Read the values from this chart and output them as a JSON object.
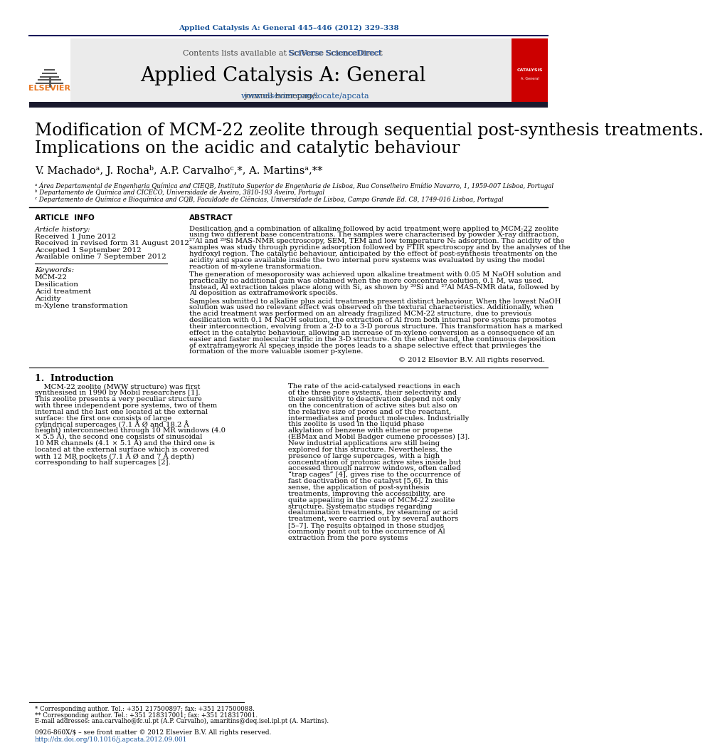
{
  "journal_ref": "Applied Catalysis A: General 445–446 (2012) 329–338",
  "contents_line": "Contents lists available at SciVerse ScienceDirect",
  "journal_name": "Applied Catalysis A: General",
  "journal_homepage_prefix": "journal homepage: ",
  "journal_homepage_link": "www.elsevier.com/locate/apcata",
  "title_line1": "Modification of MCM-22 zeolite through sequential post-synthesis treatments.",
  "title_line2": "Implications on the acidic and catalytic behaviour",
  "authors": "V. Machadoᵃ, J. Rochaᵇ, A.P. Carvalhoᶜ,*, A. Martinsᵃ,**",
  "affil_a": "ᵃ Área Departamental de Engenharia Química and CIEQB, Instituto Superior de Engenharia de Lisboa, Rua Conselheiro Emídio Navarro, 1, 1959-007 Lisboa, Portugal",
  "affil_b": "ᵇ Departamento de Química and CICECO, Universidade de Aveiro, 3810-193 Aveiro, Portugal",
  "affil_c": "ᶜ Departamento de Química e Bioquímica and CQB, Faculdade de Ciências, Universidade de Lisboa, Campo Grande Ed. C8, 1749-016 Lisboa, Portugal",
  "article_info_header": "ARTICLE  INFO",
  "abstract_header": "ABSTRACT",
  "article_history_header": "Article history:",
  "received": "Received 1 June 2012",
  "received_revised": "Received in revised form 31 August 2012",
  "accepted": "Accepted 1 September 2012",
  "available_online": "Available online 7 September 2012",
  "keywords_header": "Keywords:",
  "keywords": [
    "MCM-22",
    "Desilication",
    "Acid treatment",
    "Acidity",
    "m-Xylene transformation"
  ],
  "abstract_p1": "Desilication and a combination of alkaline followed by acid treatment were applied to MCM-22 zeolite using two different base concentrations. The samples were characterised by powder X-ray diffraction, ²⁷Al and ²⁹Si MAS-NMR spectroscopy, SEM, TEM and low temperature N₂ adsorption. The acidity of the samples was study through pyridine adsorption followed by FTIR spectroscopy and by the analyses of the hydroxyl region. The catalytic behaviour, anticipated by the effect of post-synthesis treatments on the acidity and space available inside the two internal pore systems was evaluated by using the model reaction of m-xylene transformation.",
  "abstract_p2": "The generation of mesoporosity was achieved upon alkaline treatment with 0.05 M NaOH solution and practically no additional gain was obtained when the more concentrate solution, 0.1 M, was used. Instead, Al extraction takes place along with Si, as shown by ²⁹Si and ²⁷Al MAS-NMR data, followed by Al deposition as extraframework species.",
  "abstract_p3": "Samples submitted to alkaline plus acid treatments present distinct behaviour. When the lowest NaOH solution was used no relevant effect was observed on the textural characteristics. Additionally, when the acid treatment was performed on an already fragilized MCM-22 structure, due to previous desilication with 0.1 M NaOH solution, the extraction of Al from both internal pore systems promotes their interconnection, evolving from a 2-D to a 3-D porous structure. This transformation has a marked effect in the catalytic behaviour, allowing an increase of m-xylene conversion as a consequence of an easier and faster molecular traffic in the 3-D structure. On the other hand, the continuous deposition of extraframework Al species inside the pores leads to a shape selective effect that privileges the formation of the more valuable isomer p-xylene.",
  "copyright": "© 2012 Elsevier B.V. All rights reserved.",
  "intro_header": "1.  Introduction",
  "intro_p1": "MCM-22 zeolite (MWW structure) was first synthesised in 1990 by Mobil researchers [1]. This zeolite presents a very peculiar structure with three independent pore systems, two of them internal and the last one located at the external surface: the first one consists of large cylindrical supercages (7.1 Å Ø and 18.2 Å height) interconnected through 10 MR windows (4.0 × 5.5 Å), the second one consists of sinusoidal 10 MR channels (4.1 × 5.1 Å) and the third one is located at the external surface which is covered with 12 MR pockets (7.1 Å Ø and 7 Å depth) corresponding to half supercages [2].",
  "intro_p2_right": "The rate of the acid-catalysed reactions in each of the three pore systems, their selectivity and their sensitivity to deactivation depend not only on the concentration of active sites but also on the relative size of pores and of the reactant, intermediates and product molecules. Industrially this zeolite is used in the liquid phase alkylation of benzene with ethene or propene (EBMax and Mobil Badger cumene processes) [3]. New industrial applications are still being explored for this structure. Nevertheless, the presence of large supercages, with a high concentration of protonic active sites inside but accessed through narrow windows, often called “trap cages” [4], gives rise to the occurrence of fast deactivation of the catalyst [5,6]. In this sense, the application of post-synthesis treatments, improving the accessibility, are quite appealing in the case of MCM-22 zeolite structure. Systematic studies regarding dealumination treatments, by steaming or acid treatment, were carried out by several authors [5–7]. The results obtained in those studies commonly point out to the occurrence of Al extraction from the pore systems",
  "footnote_star": "* Corresponding author. Tel.: +351 217500897; fax: +351 217500088.",
  "footnote_starstar": "** Corresponding author. Tel.: +351 218317001; fax: +351 218317001.",
  "footnote_emails": "E-mail addresses: ana.carvalho@fc.ul.pt (A.P. Carvalho), amaritins@deq.isel.ipl.pt (A. Martins).",
  "issn_line": "0926-860X/$ – see front matter © 2012 Elsevier B.V. All rights reserved.",
  "doi_line": "http://dx.doi.org/10.1016/j.apcata.2012.09.001",
  "bg_color": "#ffffff",
  "header_bg": "#ebebeb",
  "dark_bar_color": "#1a1a2e",
  "blue_link": "#1a5499",
  "orange_elsevier": "#e87722",
  "sciverse_color": "#2255aa",
  "red_cover": "#cc0000"
}
